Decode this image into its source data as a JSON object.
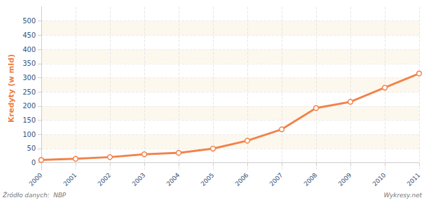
{
  "chart_data": {
    "type": "line",
    "y_label": "Kredyty (w mld)",
    "categories": [
      "2000",
      "2001",
      "2002",
      "2003",
      "2004",
      "2005",
      "2006",
      "2007",
      "2008",
      "2009",
      "2010",
      "2011"
    ],
    "values": [
      10,
      14,
      20,
      30,
      35,
      50,
      78,
      118,
      193,
      215,
      265,
      315
    ],
    "color": "#f2824a",
    "marker": "circle",
    "ylim": [
      -25,
      550
    ],
    "yticks": [
      0,
      50,
      100,
      150,
      200,
      250,
      300,
      350,
      400,
      450,
      500
    ],
    "grid": true,
    "annotations": [
      "Źródło danych:  NBP",
      "Wykresy.net",
      "wykresy.net"
    ]
  }
}
